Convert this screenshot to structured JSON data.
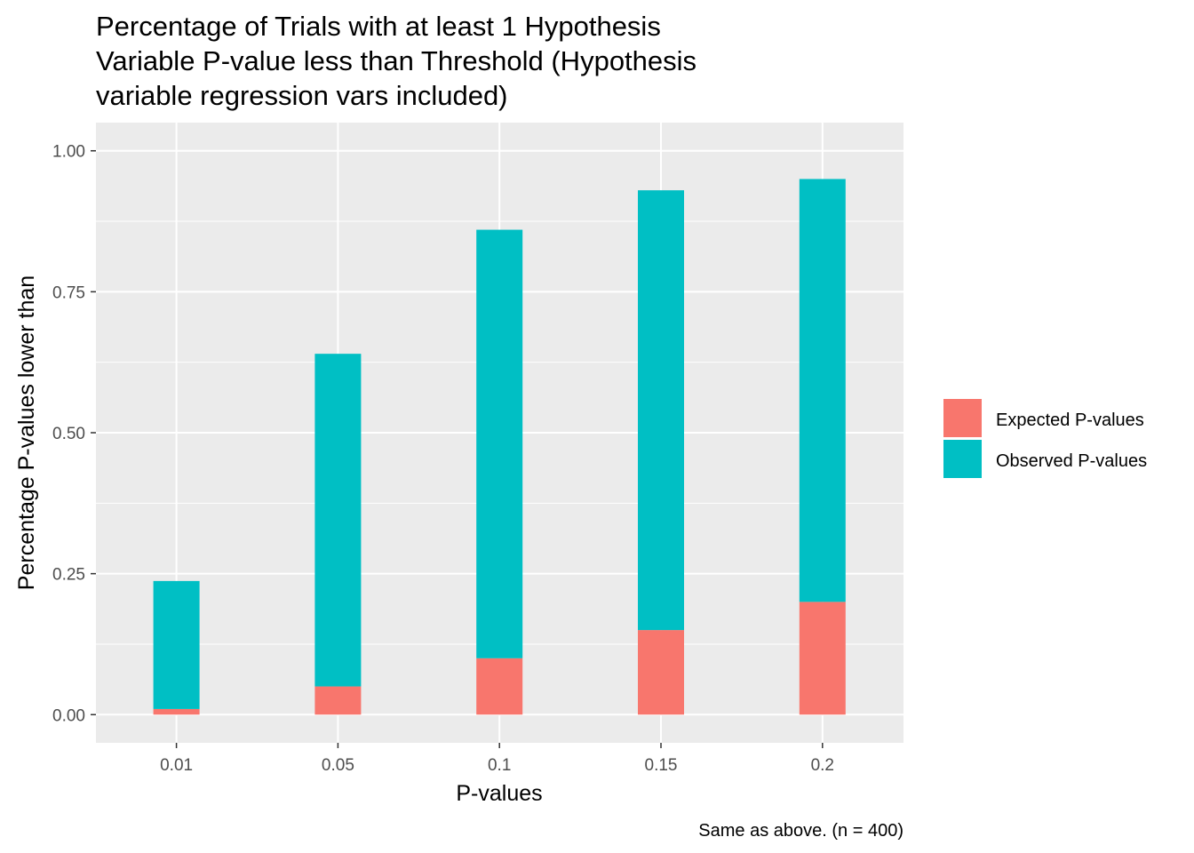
{
  "chart_data": {
    "type": "bar",
    "stacked": true,
    "title_lines": [
      "Percentage of Trials with at least 1 Hypothesis",
      "Variable P-value less than Threshold (Hypothesis",
      "variable regression vars included)"
    ],
    "xlabel": "P-values",
    "ylabel": "Percentage P-values lower than",
    "caption": "Same as above. (n = 400)",
    "categories": [
      "0.01",
      "0.05",
      "0.1",
      "0.15",
      "0.2"
    ],
    "series": [
      {
        "name": "Expected P-values",
        "color": "#F8766D",
        "values": [
          0.01,
          0.05,
          0.1,
          0.15,
          0.2
        ]
      },
      {
        "name": "Observed P-values",
        "color": "#00BFC4",
        "values": [
          0.227,
          0.59,
          0.76,
          0.78,
          0.75
        ]
      }
    ],
    "ylim": [
      -0.05,
      1.05
    ],
    "yticks": [
      0.0,
      0.25,
      0.5,
      0.75,
      1.0
    ],
    "ytick_labels": [
      "0.00",
      "0.25",
      "0.50",
      "0.75",
      "1.00"
    ],
    "grid": true,
    "legend_position": "right",
    "panel_background": "#EBEBEB"
  }
}
